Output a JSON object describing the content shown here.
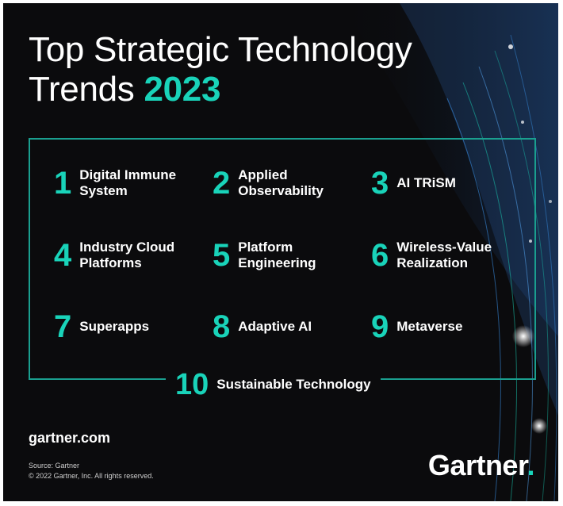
{
  "title": {
    "line1": "Top Strategic Technology",
    "line2_prefix": "Trends ",
    "year": "2023"
  },
  "trends": [
    {
      "number": "1",
      "label": "Digital Immune\nSystem"
    },
    {
      "number": "2",
      "label": "Applied\nObservability"
    },
    {
      "number": "3",
      "label": "AI TRiSM"
    },
    {
      "number": "4",
      "label": "Industry Cloud\nPlatforms"
    },
    {
      "number": "5",
      "label": "Platform\nEngineering"
    },
    {
      "number": "6",
      "label": "Wireless-Value\nRealization"
    },
    {
      "number": "7",
      "label": "Superapps"
    },
    {
      "number": "8",
      "label": "Adaptive AI"
    },
    {
      "number": "9",
      "label": "Metaverse"
    },
    {
      "number": "10",
      "label": "Sustainable Technology"
    }
  ],
  "footer": {
    "site": "gartner.com",
    "source": "Source: Gartner",
    "copyright": "© 2022 Gartner, Inc. All rights reserved.",
    "logo": "Gartner",
    "logo_dot": "."
  },
  "colors": {
    "accent": "#19d3b9",
    "background": "#0b0b0d",
    "frame": "#1a9f8f"
  }
}
